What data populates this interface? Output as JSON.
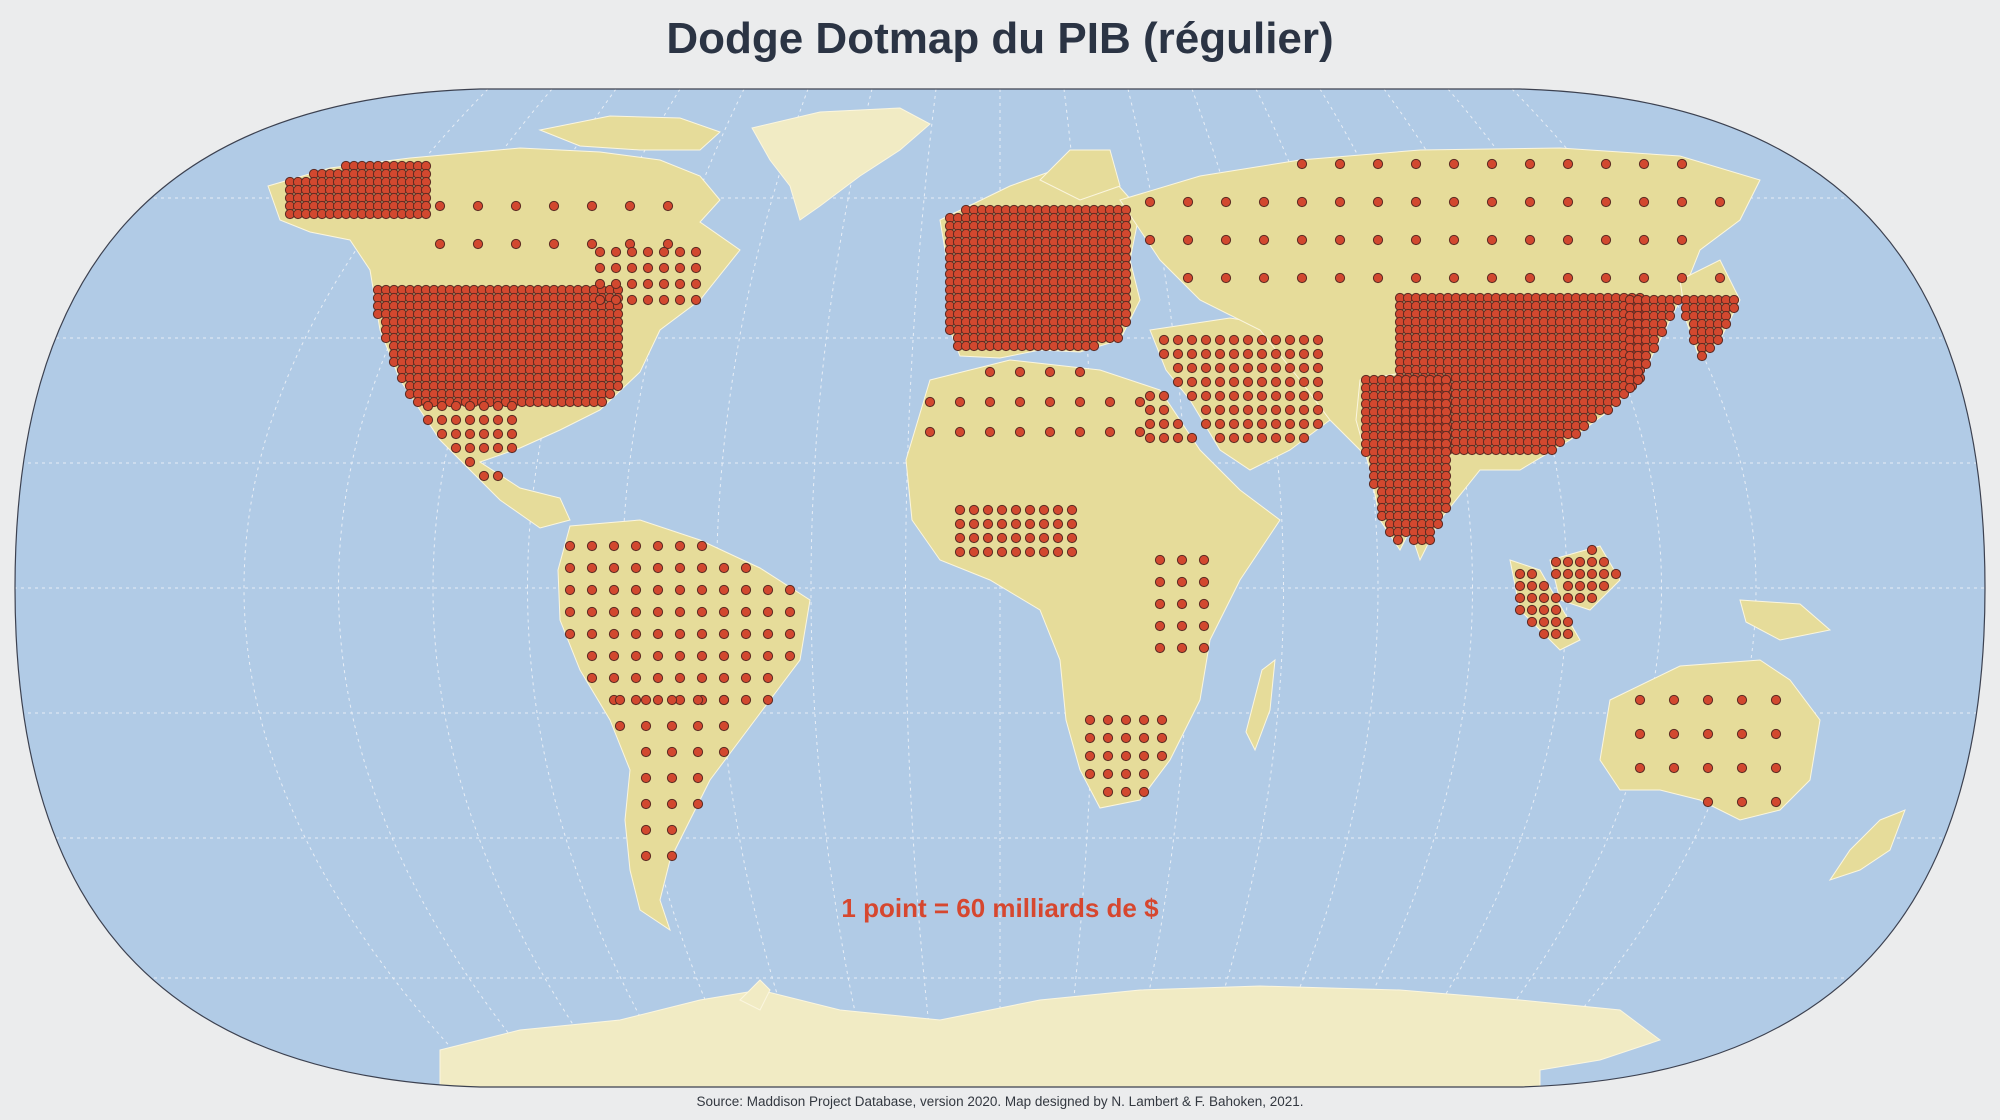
{
  "title": "Dodge Dotmap du PIB (régulier)",
  "scale_note": "1 point = 60 milliards de $",
  "source": "Source: Maddison Project Database, version 2020. Map designed by N. Lambert & F. Bahoken, 2021.",
  "projection": "Winkel tripel",
  "colors": {
    "background": "#ebeced",
    "ocean": "#b1cbe6",
    "land": "#e6dc9a",
    "land_light": "#f1ebc4",
    "dot_fill": "#d2482f",
    "dot_stroke": "#5a2a22",
    "accent_text": "#d6472f",
    "title_text": "#2b3444",
    "graticule": "#e8eef6"
  },
  "legend": {
    "unit": "1 point = 60 milliards de $"
  }
}
